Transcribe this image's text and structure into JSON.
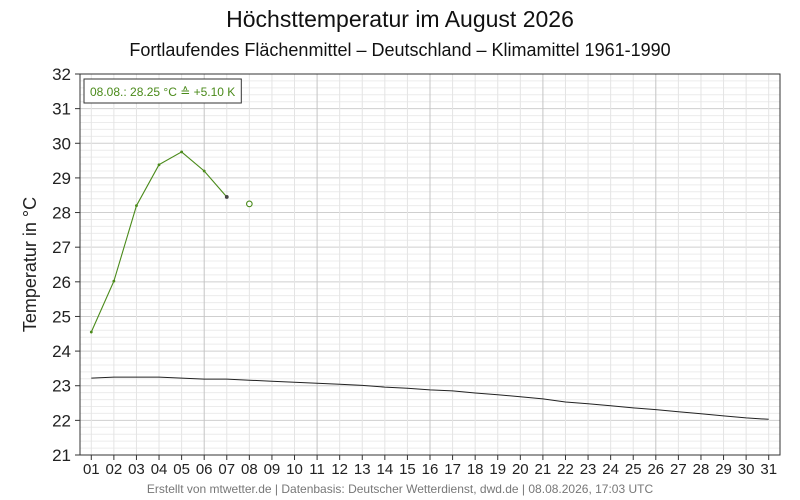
{
  "chart_data": {
    "type": "line",
    "title": "Höchsttemperatur im August 2026",
    "subtitle": "Fortlaufendes Flächenmittel – Deutschland – Klimamittel 1961-1990",
    "ylabel": "Temperatur in °C",
    "xlabel": "",
    "ylim": [
      21,
      32
    ],
    "xlim": [
      0.5,
      31.5
    ],
    "grid": true,
    "y_ticks": [
      "21",
      "22",
      "23",
      "24",
      "25",
      "26",
      "27",
      "28",
      "29",
      "30",
      "31",
      "32"
    ],
    "x_ticks": [
      "01",
      "02",
      "03",
      "04",
      "05",
      "06",
      "07",
      "08",
      "09",
      "10",
      "11",
      "12",
      "13",
      "14",
      "15",
      "16",
      "17",
      "18",
      "19",
      "20",
      "21",
      "22",
      "23",
      "24",
      "25",
      "26",
      "27",
      "28",
      "29",
      "30",
      "31"
    ],
    "series": [
      {
        "color": "#4a8a1a",
        "x": [
          1,
          2,
          3,
          4,
          5,
          6,
          7
        ],
        "values": [
          24.55,
          26.02,
          28.2,
          29.38,
          29.75,
          29.2,
          28.45
        ]
      },
      {
        "color": "#222222",
        "x": [
          1,
          2,
          3,
          4,
          5,
          6,
          7,
          8,
          9,
          10,
          11,
          12,
          13,
          14,
          15,
          16,
          17,
          18,
          19,
          20,
          21,
          22,
          23,
          24,
          25,
          26,
          27,
          28,
          29,
          30,
          31
        ],
        "values": [
          23.22,
          23.25,
          23.25,
          23.25,
          23.22,
          23.19,
          23.19,
          23.16,
          23.13,
          23.1,
          23.07,
          23.04,
          23.01,
          22.96,
          22.93,
          22.88,
          22.85,
          22.79,
          22.74,
          22.68,
          22.62,
          22.53,
          22.48,
          22.42,
          22.36,
          22.31,
          22.25,
          22.19,
          22.13,
          22.07,
          22.03
        ]
      }
    ],
    "open_point": {
      "x": 8,
      "value": 28.25,
      "color": "#4a8a1a"
    },
    "annotation": {
      "text": "08.08.: 28.25 °C  ≙  +5.10 K",
      "color": "#4a8a1a",
      "placement": "top-left"
    }
  },
  "footer": "Erstellt von mtwetter.de | Datenbasis: Deutscher Wetterdienst, dwd.de | 08.08.2026, 17:03 UTC"
}
